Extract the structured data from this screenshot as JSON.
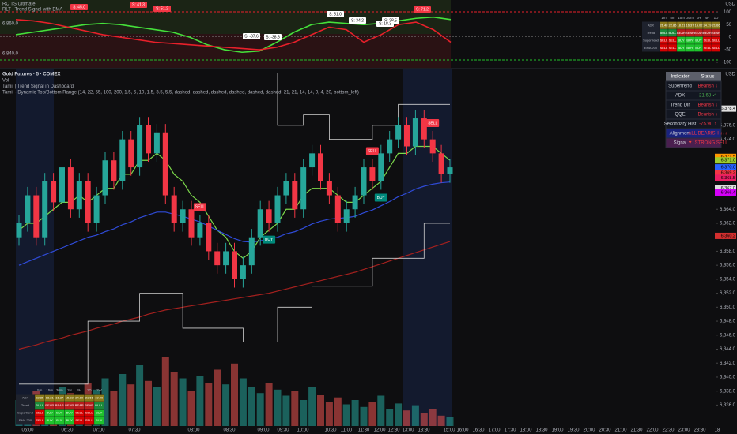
{
  "chart_data": [
    {
      "type": "candlestick",
      "title": "Gold Futures · 5 · COMEX",
      "subtitles": [
        "Vol",
        "Tamil | Trend Signal in Dashboard",
        "Tamil - Dynamic Top/Bottom Range (14, 22, 55, 100, 200, 1.5, 5, 10, 1.5, 3.5, 5.5, dashed, dashed, dashed, dashed, dashed, dashed, 21, 21, 14, 14, 9, 4, 20, bottom_left)"
      ],
      "currency": "USD",
      "open": [
        6360,
        6362,
        6366,
        6360,
        6368,
        6365,
        6370,
        6364,
        6368,
        6362,
        6366,
        6371,
        6368,
        6374,
        6370,
        6376,
        6372,
        6375,
        6366,
        6362,
        6364,
        6360,
        6362,
        6358,
        6356,
        6358,
        6354,
        6356,
        6360,
        6364,
        6362,
        6366,
        6368,
        6364,
        6370,
        6372,
        6368,
        6366,
        6362,
        6364,
        6366,
        6370,
        6368,
        6372,
        6374,
        6376,
        6373,
        6377,
        6374,
        6372,
        6369
      ],
      "high": [
        6363.2,
        6367.2,
        6367.2,
        6369.2,
        6369.2,
        6371.2,
        6371.2,
        6369.2,
        6369.2,
        6367.2,
        6372.2,
        6372.2,
        6375.2,
        6375.2,
        6377.2,
        6377.2,
        6376.2,
        6376.2,
        6367.2,
        6365.2,
        6365.2,
        6363.2,
        6363.2,
        6359.2,
        6359.2,
        6359.2,
        6357.2,
        6361.2,
        6365.2,
        6365.2,
        6367.2,
        6369.2,
        6369.2,
        6371.2,
        6373.2,
        6373.2,
        6369.2,
        6367.2,
        6365.2,
        6367.2,
        6371.2,
        6371.2,
        6373.2,
        6375.2,
        6377.2,
        6377.2,
        6378.2,
        6378.2,
        6375.2,
        6373.2,
        6371.2
      ],
      "low": [
        6358.8,
        6360.8,
        6358.8,
        6358.8,
        6363.8,
        6363.8,
        6362.8,
        6362.8,
        6360.8,
        6360.8,
        6364.8,
        6366.8,
        6366.8,
        6368.8,
        6368.8,
        6370.8,
        6370.8,
        6364.8,
        6360.8,
        6360.8,
        6358.8,
        6358.8,
        6356.8,
        6354.8,
        6354.8,
        6352.8,
        6352.8,
        6354.8,
        6358.8,
        6360.8,
        6360.8,
        6364.8,
        6362.8,
        6362.8,
        6368.8,
        6366.8,
        6364.8,
        6360.8,
        6360.8,
        6362.8,
        6364.8,
        6366.8,
        6366.8,
        6370.8,
        6372.8,
        6371.8,
        6371.8,
        6372.8,
        6370.8,
        6367.8,
        6367.8
      ],
      "close": [
        6362,
        6366,
        6360,
        6368,
        6365,
        6370,
        6364,
        6368,
        6362,
        6366,
        6371,
        6368,
        6374,
        6370,
        6376,
        6372,
        6375,
        6366,
        6362,
        6364,
        6360,
        6362,
        6358,
        6356,
        6358,
        6354,
        6356,
        6360,
        6364,
        6362,
        6366,
        6368,
        6364,
        6370,
        6372,
        6368,
        6366,
        6362,
        6364,
        6366,
        6370,
        6368,
        6372,
        6374,
        6376,
        6373,
        6377,
        6374,
        6372,
        6369,
        6370
      ],
      "volume": [
        30,
        25,
        40,
        35,
        28,
        45,
        38,
        30,
        50,
        42,
        55,
        40,
        60,
        48,
        70,
        52,
        45,
        80,
        62,
        55,
        40,
        58,
        50,
        65,
        48,
        72,
        55,
        45,
        38,
        50,
        42,
        35,
        40,
        30,
        45,
        36,
        28,
        33,
        25,
        30,
        22,
        28,
        35,
        20,
        26,
        18,
        24,
        15,
        20,
        12,
        10
      ],
      "signals": [
        null,
        null,
        null,
        null,
        null,
        null,
        null,
        null,
        null,
        null,
        null,
        null,
        null,
        null,
        null,
        null,
        null,
        null,
        null,
        null,
        null,
        "SELL",
        null,
        null,
        null,
        null,
        null,
        null,
        null,
        "BUY",
        null,
        null,
        null,
        null,
        null,
        null,
        null,
        null,
        null,
        null,
        null,
        "SELL",
        "BUY",
        null,
        null,
        null,
        null,
        null,
        "SELL",
        null,
        null
      ],
      "series": [
        {
          "color": "#7cd84a",
          "values": [
            6361,
            6362,
            6362,
            6363,
            6364,
            6365,
            6365,
            6366,
            6365,
            6366,
            6367,
            6367,
            6369,
            6369,
            6371,
            6371,
            6372,
            6371,
            6369,
            6368,
            6366,
            6365,
            6363,
            6361,
            6360,
            6358,
            6357,
            6358,
            6360,
            6361,
            6362,
            6364,
            6364,
            6366,
            6367,
            6367,
            6367,
            6366,
            6365,
            6365,
            6366,
            6367,
            6368,
            6370,
            6372,
            6372,
            6373,
            6373,
            6373,
            6372,
            6371
          ]
        },
        {
          "color": "#2f4bd8",
          "values": [
            6356,
            6356.5,
            6357,
            6357.5,
            6358,
            6358.5,
            6359,
            6359.5,
            6360,
            6360.3,
            6360.8,
            6361.2,
            6361.8,
            6362.2,
            6362.8,
            6363.2,
            6363.6,
            6363.6,
            6363.3,
            6363,
            6362.6,
            6362.2,
            6361.6,
            6361,
            6360.4,
            6359.8,
            6359.4,
            6359.3,
            6359.5,
            6359.7,
            6360,
            6360.5,
            6360.8,
            6361.3,
            6361.9,
            6362.3,
            6362.6,
            6362.7,
            6362.8,
            6363,
            6363.5,
            6363.9,
            6364.5,
            6365.1,
            6365.8,
            6366.3,
            6366.9,
            6367.3,
            6367.6,
            6367.8,
            6367.9
          ]
        },
        {
          "color": "#a3201e",
          "values": [
            6344,
            6344.3,
            6344.6,
            6345,
            6345.3,
            6345.6,
            6346,
            6346.3,
            6346.6,
            6347,
            6347.3,
            6347.6,
            6348,
            6348.3,
            6348.6,
            6349,
            6349.3,
            6349.6,
            6349.8,
            6350,
            6350.2,
            6350.4,
            6350.6,
            6350.8,
            6351,
            6351.2,
            6351.4,
            6351.6,
            6351.8,
            6352,
            6352.3,
            6352.6,
            6352.9,
            6353.2,
            6353.5,
            6353.8,
            6354.1,
            6354.4,
            6354.7,
            6355,
            6355.4,
            6355.8,
            6356.2,
            6356.6,
            6357,
            6357.4,
            6357.8,
            6358.2,
            6358.6,
            6359,
            6359.4
          ]
        },
        {
          "color": "#d0d0d0",
          "step": true,
          "values": [
            6383.5,
            6383.5,
            6383.5,
            6383.5,
            6383.5,
            6383.5,
            6383.5,
            6383.5,
            6383.5,
            6383.5,
            6383.5,
            6383.5,
            6383.5,
            6383.5,
            6383.5,
            6383.5,
            6383.5,
            6383.5,
            6383.5,
            6383.5,
            6383.5,
            6383.5,
            6383.5,
            6383.5,
            6383.5,
            6383.5,
            6383.5,
            6383.5,
            6383.5,
            6383.5,
            6376,
            6376,
            6376,
            6377.5,
            6377.5,
            6377.5,
            6374,
            6374,
            6374,
            6374,
            6374,
            6376,
            6376,
            6376,
            6379,
            6379,
            6379,
            6379,
            6379,
            6379,
            6379
          ]
        },
        {
          "color": "#d0d0d0",
          "step": true,
          "values": [
            6339,
            6339,
            6339,
            6339,
            6339,
            6339,
            6339,
            6339,
            6348,
            6348,
            6348,
            6348,
            6348,
            6348,
            6352,
            6352,
            6352,
            6352,
            6352,
            6347,
            6347,
            6347,
            6347,
            6347,
            6347,
            6347,
            6345,
            6345,
            6345,
            6345,
            6350,
            6350,
            6350,
            6350,
            6353,
            6353,
            6353,
            6353,
            6353,
            6353,
            6353,
            6357,
            6357,
            6357,
            6357,
            6357,
            6357,
            6362,
            6362,
            6362,
            6362
          ]
        }
      ],
      "ylim": [
        6333,
        6384
      ],
      "yticks": [
        {
          "value": 6336,
          "label": "6,336.0"
        },
        {
          "value": 6338,
          "label": "6,338.0"
        },
        {
          "value": 6340,
          "label": "6,340.0"
        },
        {
          "value": 6342,
          "label": "6,342.0"
        },
        {
          "value": 6344,
          "label": "6,344.0"
        },
        {
          "value": 6346,
          "label": "6,346.0"
        },
        {
          "value": 6348,
          "label": "6,348.0"
        },
        {
          "value": 6350,
          "label": "6,350.0"
        },
        {
          "value": 6352,
          "label": "6,352.0"
        },
        {
          "value": 6354,
          "label": "6,354.0"
        },
        {
          "value": 6356,
          "label": "6,356.0"
        },
        {
          "value": 6358,
          "label": "6,358.0"
        },
        {
          "value": 6360,
          "label": "6,360.0"
        },
        {
          "value": 6362,
          "label": "6,362.0"
        },
        {
          "value": 6364,
          "label": "6,364.0"
        },
        {
          "value": 6374,
          "label": "6,374.0"
        },
        {
          "value": 6376,
          "label": "6,376.0"
        }
      ],
      "price_tags": [
        {
          "value": 6378.4,
          "label": "6,378.4",
          "color": "#e0e0e0"
        },
        {
          "value": 6371.5,
          "label": "6,371.5",
          "color": "#ff9800"
        },
        {
          "value": 6371,
          "label": "6,371.0",
          "color": "#9ccc2e"
        },
        {
          "value": 6370,
          "label": "6,370.0",
          "color": "#2962ff"
        },
        {
          "value": 6369.2,
          "label": "6,369.2",
          "color": "#f23645"
        },
        {
          "value": 6368.5,
          "label": "6,368.5",
          "color": "#e91e63"
        },
        {
          "value": 6367,
          "label": "6,367.0",
          "color": "#e0e0e0"
        },
        {
          "value": 6366.4,
          "label": "6,366.4",
          "color": "#d500f9"
        },
        {
          "value": 6360.2,
          "label": "6,360.2",
          "color": "#d32f2f"
        }
      ]
    },
    {
      "type": "line",
      "title": "RC TS Ultimate",
      "subtitle": "RLT | Trend Signal with EMA",
      "left_labels": [
        {
          "value": 6860,
          "label": "6,860.0"
        },
        {
          "value": 6840,
          "label": "6,840.0"
        }
      ],
      "series": [
        {
          "color": "#45e03a",
          "values": [
            10,
            20,
            30,
            40,
            50,
            55,
            50,
            40,
            30,
            20,
            0,
            -30,
            -50,
            -60,
            -55,
            -20,
            20,
            50,
            60,
            55,
            50,
            55,
            65,
            75,
            80,
            70
          ]
        },
        {
          "color": "#e8202a",
          "values": [
            70,
            65,
            55,
            40,
            25,
            10,
            0,
            -10,
            -20,
            -25,
            -30,
            -35,
            -40,
            -45,
            -50,
            -40,
            -20,
            10,
            40,
            30,
            -20,
            10,
            50,
            60,
            30,
            -20
          ]
        }
      ],
      "tags": [
        "S: 45.0",
        "S: 41.3",
        "S: 51.2",
        "S: -37.6",
        "S: -38.8",
        "S: 51.0",
        "S: 34.2",
        "S: 28.5",
        "S: 18.3",
        "S: 71.2"
      ],
      "ylim": [
        -122,
        148
      ],
      "yticks": [
        100,
        50,
        0,
        -50,
        -100
      ]
    }
  ],
  "time_axis": [
    "06:00",
    "06:30",
    "07:00",
    "07:30",
    "08:00",
    "08:30",
    "09:00",
    "09:30",
    "10:00",
    "10:30",
    "11:00",
    "11:30",
    "12:00",
    "12:30",
    "13:00",
    "13:30",
    "15:00",
    "16:00",
    "16:30",
    "17:00",
    "17:30",
    "18:00",
    "18:30",
    "19:00",
    "19:30",
    "20:00",
    "20:30",
    "21:00",
    "21:30",
    "22:00",
    "22:30",
    "23:00",
    "23:30",
    "18"
  ],
  "dashboard": {
    "header": [
      "Indicator",
      "Status"
    ],
    "rows": [
      {
        "cells": [
          "Supertrend",
          "Bearish ↓"
        ],
        "color": "#f23645"
      },
      {
        "cells": [
          "ADX",
          "21.68 ✓"
        ],
        "color": "#4caf50"
      },
      {
        "cells": [
          "Trend Dir",
          "Bearish ↓"
        ],
        "color": "#f23645"
      },
      {
        "cells": [
          "QQE",
          "Bearish ↓"
        ],
        "color": "#f23645"
      },
      {
        "cells": [
          "Secondary Hist",
          "-75.90 ↑"
        ],
        "color": "#f23645"
      },
      {
        "cells": [
          "Alignment",
          "ALL BEARISH ↓↓↓"
        ],
        "color": "#f23645"
      },
      {
        "cells": [
          "Signal",
          "🔻 STRONG SELL"
        ],
        "color": "#f23645"
      }
    ]
  },
  "mtf_table": {
    "header": [
      "1m",
      "5m",
      "15m",
      "30m",
      "1H",
      "4H",
      "1D"
    ],
    "rows": [
      [
        "ADX",
        "26.48",
        "22.85",
        "18.21",
        "16.37",
        "15.02",
        "24.19",
        "21.66"
      ],
      [
        "Trend",
        "BULL",
        "BULL",
        "BEAR",
        "BEAR",
        "BEAR",
        "BEAR",
        "BEAR"
      ],
      [
        "Supertrend",
        "SELL",
        "SELL",
        "BUY",
        "BUY",
        "BUY",
        "SELL",
        "SELL"
      ],
      [
        "EMA 200",
        "SELL",
        "SELL",
        "BUY",
        "BUY",
        "BUY",
        "SELL",
        "SELL"
      ]
    ]
  },
  "mtf_table_bottom": {
    "header": [
      "5m",
      "15m",
      "30m",
      "1H",
      "4H",
      "1D",
      "1W"
    ],
    "rows": [
      [
        "ADX",
        "22.85",
        "18.21",
        "16.37",
        "15.02",
        "24.19",
        "21.66",
        "19.40"
      ],
      [
        "Trend",
        "BULL",
        "BEAR",
        "BEAR",
        "BEAR",
        "BEAR",
        "BEAR",
        "BULL"
      ],
      [
        "Supertrend",
        "SELL",
        "BUY",
        "BUY",
        "BUY",
        "SELL",
        "SELL",
        "BUY"
      ],
      [
        "EMA 200",
        "SELL",
        "BUY",
        "BUY",
        "BUY",
        "SELL",
        "SELL",
        "BUY"
      ]
    ]
  }
}
